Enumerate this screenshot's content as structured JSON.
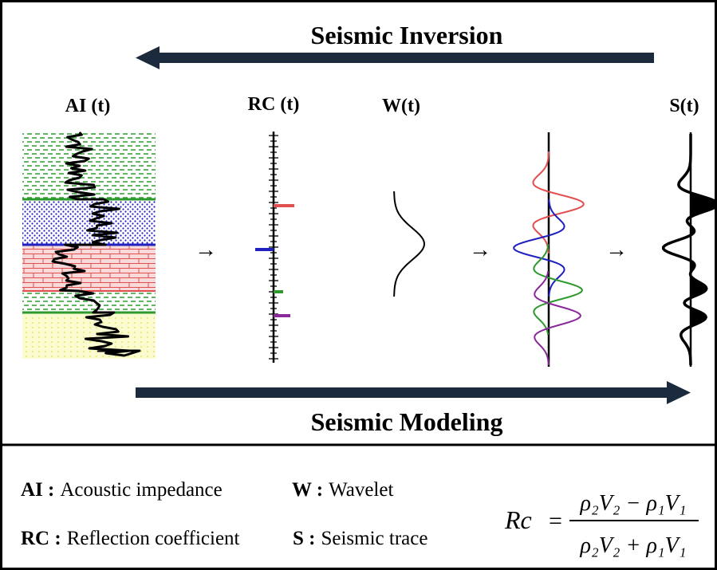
{
  "top_arrow_label": "Seismic Inversion",
  "bottom_arrow_label": "Seismic Modeling",
  "columns": {
    "ai": "AI (t)",
    "rc": "RC (t)",
    "w": "W(t)",
    "s": "S(t)"
  },
  "step_arrow_glyph": "→",
  "legend": {
    "row1": [
      {
        "term": "AI :",
        "desc": "Acoustic impedance"
      },
      {
        "term": "W :",
        "desc": "Wavelet"
      }
    ],
    "row2": [
      {
        "term": "RC :",
        "desc": "Reflection coefficient"
      },
      {
        "term": "S :",
        "desc": "Seismic trace"
      }
    ]
  },
  "formula": {
    "lhs": "Rc",
    "eq": "=",
    "numerator": "ρ₂V₂ − ρ₁V₁",
    "denominator": "ρ₂V₂ + ρ₁V₁"
  },
  "colors": {
    "arrow": "#1c2a3e",
    "green_layer": "#2e9a2e",
    "blue_layer": "#2020c0",
    "red_layer": "#e05050",
    "yellow_layer": "#e8e860",
    "purple": "#8a2a9a",
    "frame": "#000000"
  }
}
